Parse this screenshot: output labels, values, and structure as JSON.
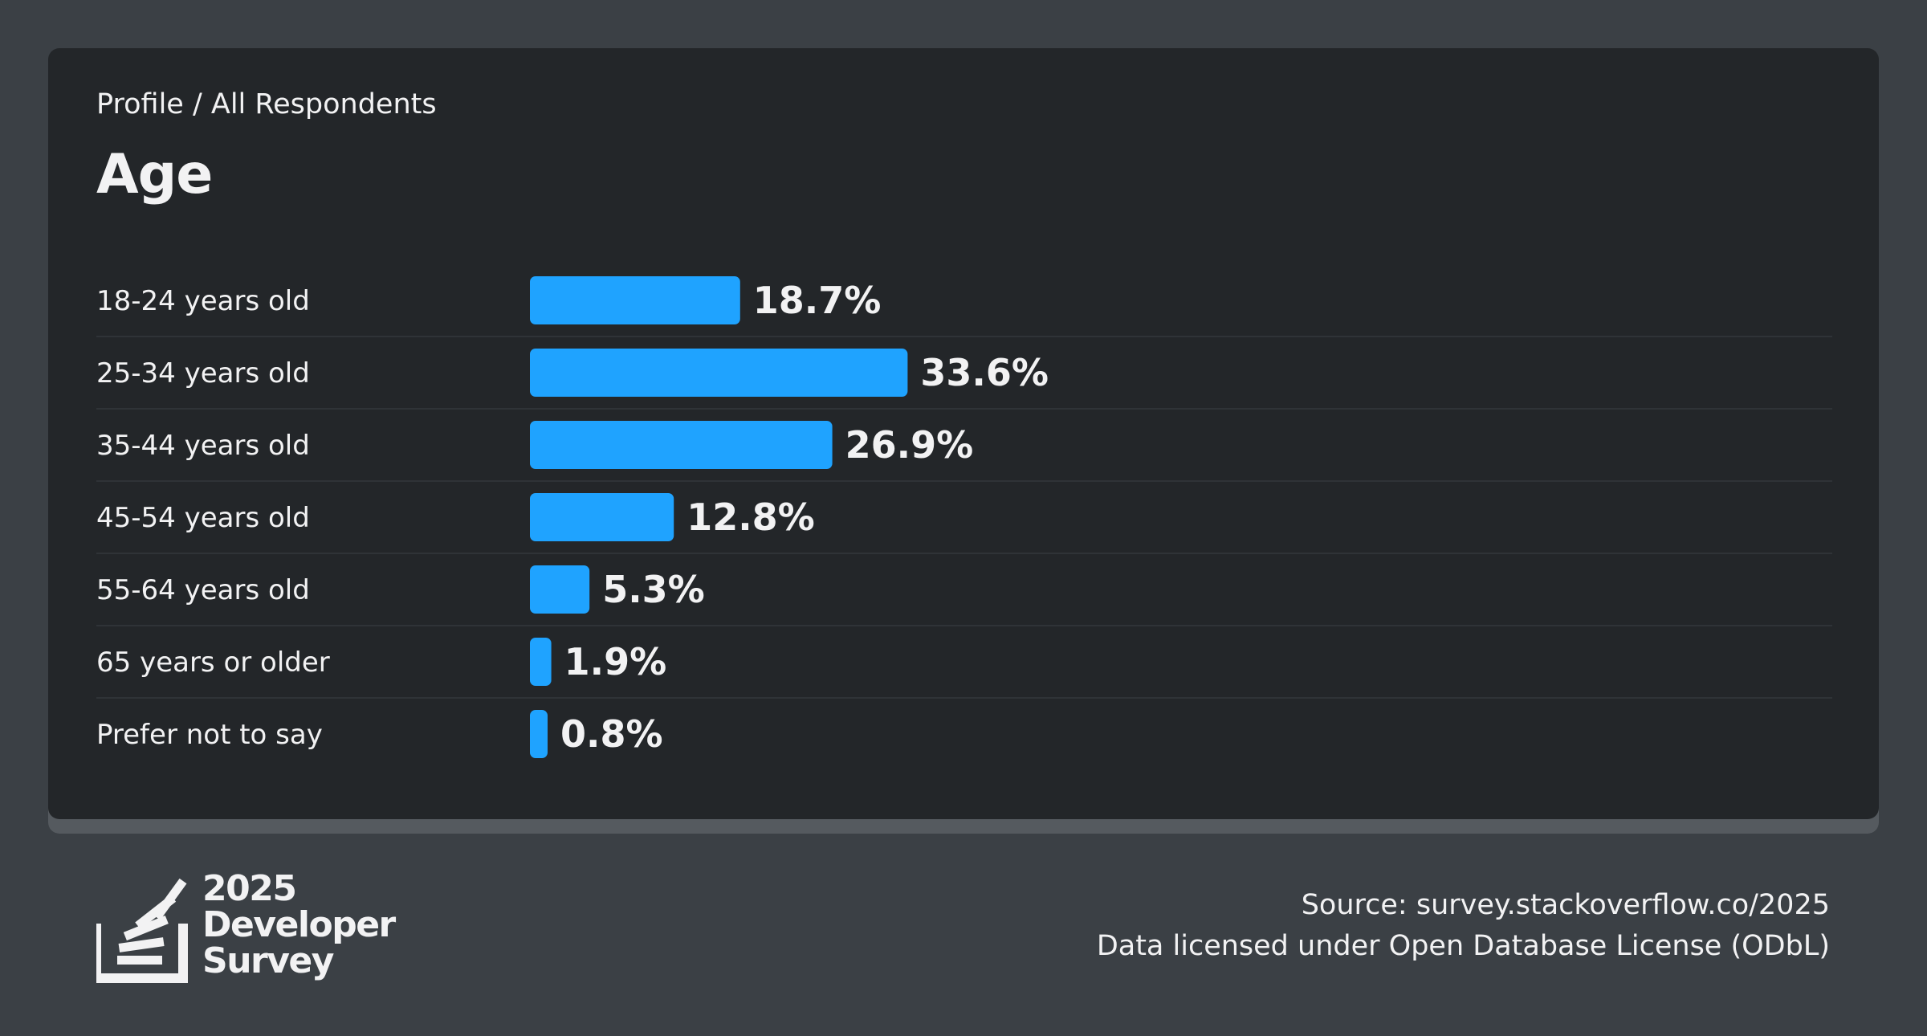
{
  "header": {
    "breadcrumb": "Profile / All Respondents",
    "title": "Age"
  },
  "colors": {
    "bar": "#1fa3ff",
    "card": "#232629",
    "background": "#3b4045",
    "divider": "#2f3337",
    "text": "#f2f2f3"
  },
  "chart_data": {
    "type": "bar",
    "orientation": "horizontal",
    "title": "Age",
    "categories": [
      "18-24 years old",
      "25-34 years old",
      "35-44 years old",
      "45-54 years old",
      "55-64 years old",
      "65 years or older",
      "Prefer not to say"
    ],
    "values": [
      18.7,
      33.6,
      26.9,
      12.8,
      5.3,
      1.9,
      0.8
    ],
    "value_labels": [
      "18.7%",
      "33.6%",
      "26.9%",
      "12.8%",
      "5.3%",
      "1.9%",
      "0.8%"
    ],
    "unit": "%",
    "grid": false,
    "legend": "none"
  },
  "footer": {
    "source": "Source: survey.stackoverflow.co/2025",
    "license": "Data licensed under Open Database License (ODbL)",
    "logo_year": "2025",
    "logo_line1": "Developer",
    "logo_line2": "Survey"
  }
}
